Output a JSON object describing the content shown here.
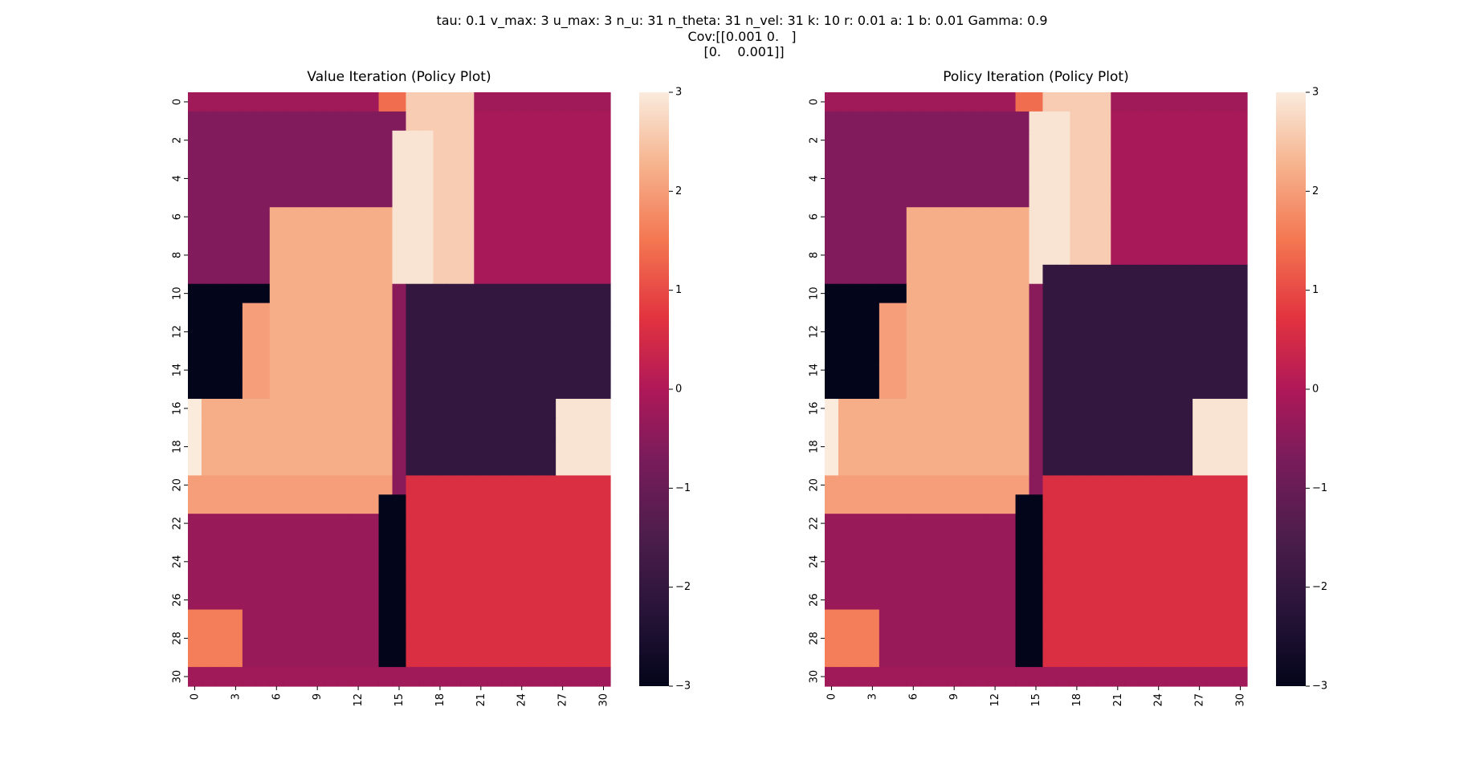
{
  "figure": {
    "suptitle_line1": "tau: 0.1 v_max: 3 u_max: 3 n_u: 31 n_theta: 31 n_vel: 31 k: 10 r: 0.01 a: 1 b: 0.01 Gamma: 0.9",
    "suptitle_line2": "Cov:[[0.001 0.   ]",
    "suptitle_line3": " [0.    0.001]]"
  },
  "chart_data": [
    {
      "type": "heatmap",
      "title": "Value Iteration (Policy Plot)",
      "n_rows": 31,
      "n_cols": 31,
      "xticks": [
        0,
        3,
        6,
        9,
        12,
        15,
        18,
        21,
        24,
        27,
        30
      ],
      "yticks": [
        0,
        2,
        4,
        6,
        8,
        10,
        12,
        14,
        16,
        18,
        20,
        22,
        24,
        26,
        28,
        30
      ],
      "colorbar_ticks": [
        -3,
        -2,
        -1,
        0,
        1,
        2,
        3
      ],
      "vmin": -3,
      "vmax": 3,
      "colormap": "rocket",
      "regions": [
        {
          "r0": 0,
          "r1": 0,
          "c0": 0,
          "c1": 30,
          "v": -0.2
        },
        {
          "r0": 1,
          "r1": 9,
          "c0": 0,
          "c1": 30,
          "v": -0.6
        },
        {
          "r0": 0,
          "r1": 0,
          "c0": 14,
          "c1": 15,
          "v": 1.4
        },
        {
          "r0": 0,
          "r1": 9,
          "c0": 16,
          "c1": 20,
          "v": 2.6
        },
        {
          "r0": 2,
          "r1": 9,
          "c0": 15,
          "c1": 17,
          "v": 2.9
        },
        {
          "r0": 1,
          "r1": 9,
          "c0": 21,
          "c1": 30,
          "v": -0.1
        },
        {
          "r0": 10,
          "r1": 21,
          "c0": 16,
          "c1": 30,
          "v": -2.0
        },
        {
          "r0": 11,
          "r1": 15,
          "c0": 0,
          "c1": 3,
          "v": -3.0
        },
        {
          "r0": 16,
          "r1": 19,
          "c0": 0,
          "c1": 0,
          "v": 3.0
        },
        {
          "r0": 16,
          "r1": 19,
          "c0": 1,
          "c1": 14,
          "v": 2.2
        },
        {
          "r0": 20,
          "r1": 21,
          "c0": 0,
          "c1": 14,
          "v": 2.0
        },
        {
          "r0": 6,
          "r1": 15,
          "c0": 6,
          "c1": 14,
          "v": 2.2
        },
        {
          "r0": 11,
          "r1": 15,
          "c0": 4,
          "c1": 5,
          "v": 2.0
        },
        {
          "r0": 10,
          "r1": 21,
          "c0": 15,
          "c1": 15,
          "v": -0.5
        },
        {
          "r0": 21,
          "r1": 29,
          "c0": 14,
          "c1": 15,
          "v": -3.0
        },
        {
          "r0": 16,
          "r1": 19,
          "c0": 27,
          "c1": 30,
          "v": 2.9
        },
        {
          "r0": 20,
          "r1": 30,
          "c0": 16,
          "c1": 30,
          "v": 0.6
        },
        {
          "r0": 22,
          "r1": 30,
          "c0": 0,
          "c1": 13,
          "v": -0.3
        },
        {
          "r0": 27,
          "r1": 29,
          "c0": 0,
          "c1": 3,
          "v": 1.6
        },
        {
          "r0": 30,
          "r1": 30,
          "c0": 0,
          "c1": 30,
          "v": -0.2
        }
      ]
    },
    {
      "type": "heatmap",
      "title": "Policy Iteration (Policy Plot)",
      "n_rows": 31,
      "n_cols": 31,
      "xticks": [
        0,
        3,
        6,
        9,
        12,
        15,
        18,
        21,
        24,
        27,
        30
      ],
      "yticks": [
        0,
        2,
        4,
        6,
        8,
        10,
        12,
        14,
        16,
        18,
        20,
        22,
        24,
        26,
        28,
        30
      ],
      "colorbar_ticks": [
        -3,
        -2,
        -1,
        0,
        1,
        2,
        3
      ],
      "vmin": -3,
      "vmax": 3,
      "colormap": "rocket",
      "regions": [
        {
          "r0": 0,
          "r1": 0,
          "c0": 0,
          "c1": 30,
          "v": -0.2
        },
        {
          "r0": 1,
          "r1": 9,
          "c0": 0,
          "c1": 30,
          "v": -0.6
        },
        {
          "r0": 0,
          "r1": 0,
          "c0": 14,
          "c1": 15,
          "v": 1.4
        },
        {
          "r0": 0,
          "r1": 8,
          "c0": 16,
          "c1": 20,
          "v": 2.6
        },
        {
          "r0": 1,
          "r1": 9,
          "c0": 15,
          "c1": 17,
          "v": 2.9
        },
        {
          "r0": 1,
          "r1": 8,
          "c0": 21,
          "c1": 30,
          "v": -0.1
        },
        {
          "r0": 9,
          "r1": 21,
          "c0": 16,
          "c1": 30,
          "v": -2.0
        },
        {
          "r0": 11,
          "r1": 15,
          "c0": 0,
          "c1": 3,
          "v": -3.0
        },
        {
          "r0": 16,
          "r1": 19,
          "c0": 0,
          "c1": 0,
          "v": 3.0
        },
        {
          "r0": 16,
          "r1": 19,
          "c0": 1,
          "c1": 14,
          "v": 2.2
        },
        {
          "r0": 20,
          "r1": 21,
          "c0": 0,
          "c1": 14,
          "v": 2.0
        },
        {
          "r0": 6,
          "r1": 15,
          "c0": 6,
          "c1": 14,
          "v": 2.2
        },
        {
          "r0": 11,
          "r1": 15,
          "c0": 4,
          "c1": 5,
          "v": 2.0
        },
        {
          "r0": 10,
          "r1": 21,
          "c0": 15,
          "c1": 15,
          "v": -0.5
        },
        {
          "r0": 21,
          "r1": 29,
          "c0": 14,
          "c1": 15,
          "v": -3.0
        },
        {
          "r0": 16,
          "r1": 19,
          "c0": 27,
          "c1": 30,
          "v": 2.9
        },
        {
          "r0": 20,
          "r1": 30,
          "c0": 16,
          "c1": 30,
          "v": 0.6
        },
        {
          "r0": 22,
          "r1": 30,
          "c0": 0,
          "c1": 13,
          "v": -0.3
        },
        {
          "r0": 27,
          "r1": 29,
          "c0": 0,
          "c1": 3,
          "v": 1.6
        },
        {
          "r0": 30,
          "r1": 30,
          "c0": 0,
          "c1": 30,
          "v": -0.2
        }
      ]
    }
  ]
}
